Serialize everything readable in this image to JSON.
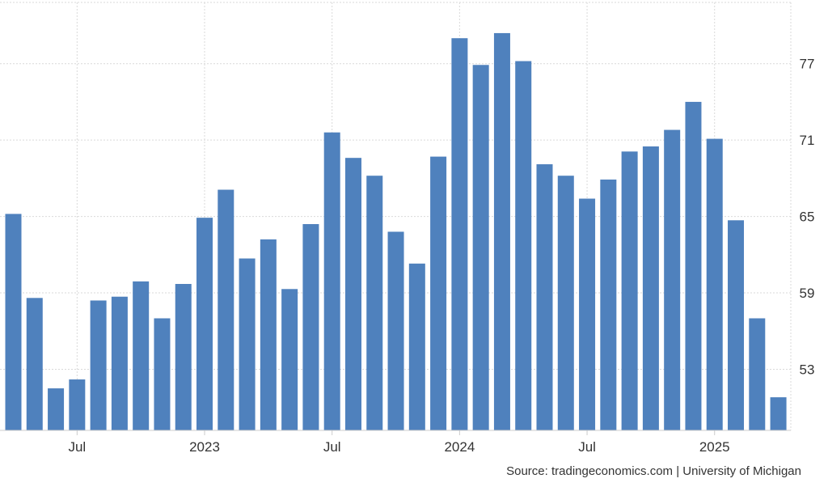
{
  "chart_data": {
    "type": "bar",
    "values": [
      65.2,
      58.6,
      51.5,
      52.2,
      58.4,
      58.7,
      59.9,
      57.0,
      59.7,
      64.9,
      67.1,
      61.7,
      63.2,
      59.3,
      64.4,
      71.6,
      69.6,
      68.2,
      63.8,
      61.3,
      69.7,
      79.0,
      76.9,
      79.4,
      77.2,
      69.1,
      68.2,
      66.4,
      67.9,
      70.1,
      70.5,
      71.8,
      74.0,
      71.1,
      64.7,
      57.0,
      50.8
    ],
    "color": "#4f81bd",
    "y_ticks": [
      53,
      59,
      65,
      71,
      77
    ],
    "ylim": [
      48.2,
      82.0
    ],
    "x_ticks": [
      {
        "label": "Jul",
        "index": 3
      },
      {
        "label": "2023",
        "index": 9
      },
      {
        "label": "Jul",
        "index": 15
      },
      {
        "label": "2024",
        "index": 21
      },
      {
        "label": "Jul",
        "index": 27
      },
      {
        "label": "2025",
        "index": 33
      }
    ],
    "grid": true,
    "y_axis_position": "right"
  },
  "source": "Source: tradingeconomics.com | University of Michigan"
}
